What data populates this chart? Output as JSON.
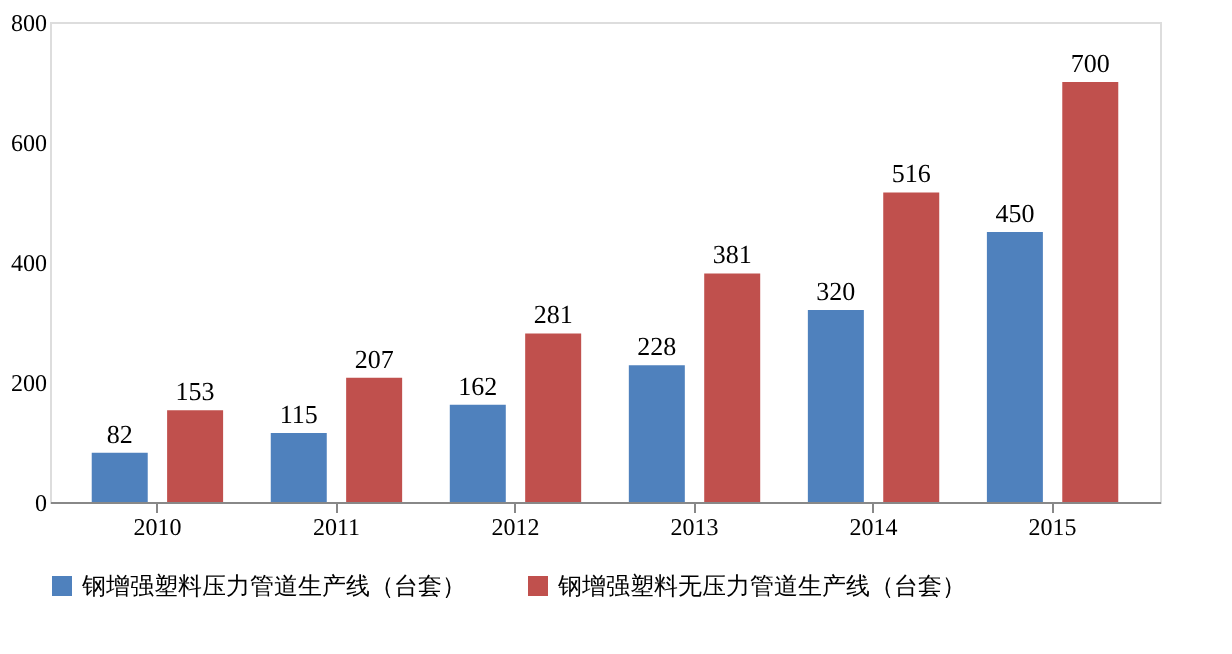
{
  "chart_data": {
    "type": "bar",
    "categories": [
      "2010",
      "2011",
      "2012",
      "2013",
      "2014",
      "2015"
    ],
    "series": [
      {
        "name": "钢增强塑料压力管道生产线（台套）",
        "color": "#4f81bd",
        "values": [
          82,
          115,
          162,
          228,
          320,
          450
        ]
      },
      {
        "name": "钢增强塑料无压力管道生产线（台套）",
        "color": "#c0504d",
        "values": [
          153,
          207,
          281,
          381,
          516,
          700
        ]
      }
    ],
    "ylim": [
      0,
      800
    ],
    "yticks": [
      0,
      200,
      400,
      600,
      800
    ],
    "grid": false,
    "legend": "bottom",
    "data_labels": true
  }
}
